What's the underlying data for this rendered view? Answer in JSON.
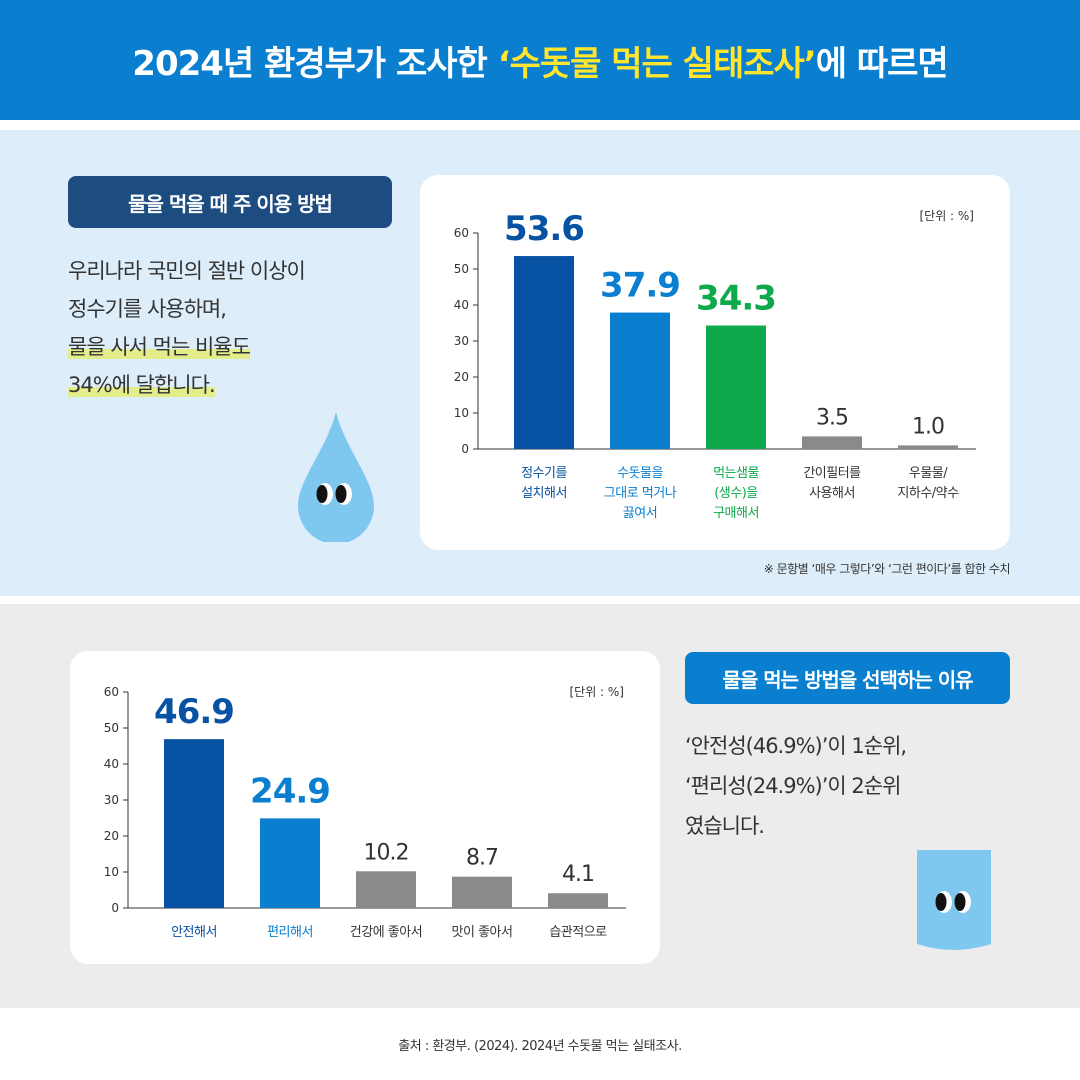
{
  "header": {
    "title_prefix": "2024년 환경부가 조사한 ",
    "title_highlight": "‘수돗물 먹는 실태조사’",
    "title_suffix": "에 따르면"
  },
  "section1": {
    "label": "물을 먹을 때 주 이용 방법",
    "desc_lines": [
      "우리나라 국민의 절반 이상이",
      "정수기를 사용하며,",
      "물을 사서 먹는 비율도",
      "34%에 달합니다."
    ],
    "unit": "[단위 : %]",
    "note": "※ 문항별 ‘매우 그렇다’와 ‘그런 편이다’를 합한 수치"
  },
  "section2": {
    "label": "물을 먹는 방법을 선택하는 이유",
    "desc_lines": [
      "‘안전성(46.9%)’이 1순위,",
      "‘편리성(24.9%)’이 2순위",
      "였습니다."
    ],
    "unit": "[단위 : %]"
  },
  "source": "출처 : 환경부. (2024). 2024년 수돗물 먹는 실태조사.",
  "colors": {
    "header": "#0a7fd0",
    "highlight": "#ffe52e",
    "dark_blue": "#0852a3",
    "blue": "#0a7fd0",
    "green": "#0ea94a",
    "gray": "#8a8a8a"
  },
  "chart_data": [
    {
      "type": "bar",
      "categories": [
        "정수기를\n설치해서",
        "수돗물을\n그대로 먹거나\n끓여서",
        "먹는샘물\n(생수)을\n구매해서",
        "간이필터를\n사용해서",
        "우물물/\n지하수/약수"
      ],
      "values": [
        53.6,
        37.9,
        34.3,
        3.5,
        1.0
      ],
      "value_labels": [
        "53.6",
        "37.9",
        "34.3",
        "3.5",
        "1.0"
      ],
      "colors": [
        "#0852a3",
        "#0a7fd0",
        "#0ea94a",
        "#8a8a8a",
        "#8a8a8a"
      ],
      "label_colors": [
        "#0852a3",
        "#0a7fd0",
        "#0ea94a",
        "#333333",
        "#333333"
      ],
      "ylim": [
        0,
        60
      ],
      "yticks": [
        0,
        10,
        20,
        30,
        40,
        50,
        60
      ],
      "grid": false
    },
    {
      "type": "bar",
      "categories": [
        "안전해서",
        "편리해서",
        "건강에 좋아서",
        "맛이 좋아서",
        "습관적으로"
      ],
      "values": [
        46.9,
        24.9,
        10.2,
        8.7,
        4.1
      ],
      "value_labels": [
        "46.9",
        "24.9",
        "10.2",
        "8.7",
        "4.1"
      ],
      "colors": [
        "#0852a3",
        "#0a7fd0",
        "#8a8a8a",
        "#8a8a8a",
        "#8a8a8a"
      ],
      "label_colors": [
        "#0852a3",
        "#0a7fd0",
        "#333333",
        "#333333",
        "#333333"
      ],
      "ylim": [
        0,
        60
      ],
      "yticks": [
        0,
        10,
        20,
        30,
        40,
        50,
        60
      ],
      "grid": false
    }
  ]
}
